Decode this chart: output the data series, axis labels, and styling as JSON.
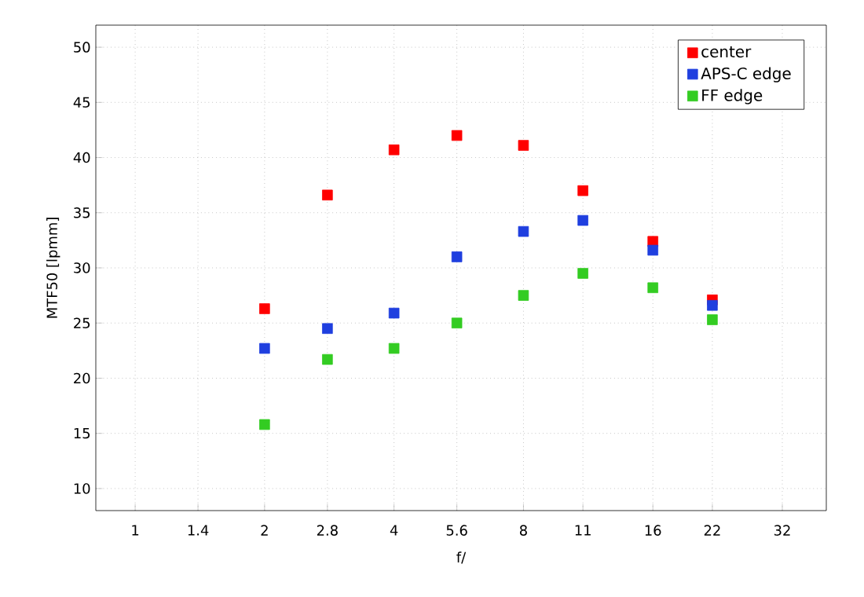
{
  "chart_data": {
    "type": "scatter",
    "xlabel": "f/",
    "ylabel": "MTF50 [lpmm]",
    "log": "x",
    "xlim": [
      0.81,
      40.5
    ],
    "ylim": [
      8,
      52
    ],
    "xticks": [
      1,
      1.4,
      2,
      2.8,
      4,
      5.6,
      8,
      11,
      16,
      22,
      32
    ],
    "yticks": [
      10,
      15,
      20,
      25,
      30,
      35,
      40,
      45,
      50
    ],
    "grid": true,
    "legend": "top right",
    "marker": "square",
    "x": [
      2,
      2.8,
      4,
      5.6,
      8,
      11,
      16,
      22
    ],
    "series": [
      {
        "name": "center",
        "color": "#ff0000",
        "values": [
          26.3,
          36.6,
          40.7,
          42.0,
          41.1,
          37.0,
          32.4,
          27.1
        ]
      },
      {
        "name": "APS-C edge",
        "color": "#1f3fdf",
        "values": [
          22.7,
          24.5,
          25.9,
          31.0,
          33.3,
          34.3,
          31.6,
          26.6
        ]
      },
      {
        "name": "FF edge",
        "color": "#33cc22",
        "values": [
          15.8,
          21.7,
          22.7,
          25.0,
          27.5,
          29.5,
          28.2,
          25.3
        ]
      }
    ]
  }
}
